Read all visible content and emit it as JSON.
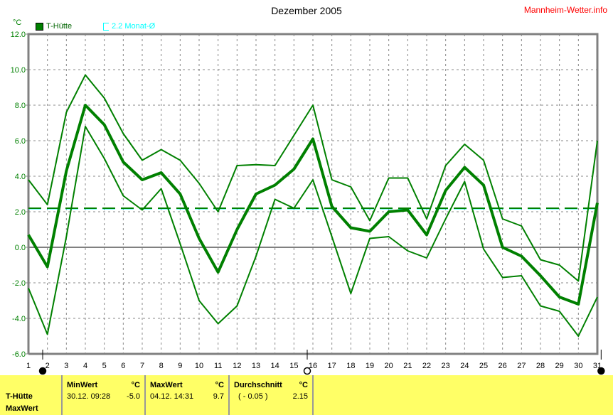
{
  "header": {
    "title": "Dezember 2005",
    "brand": "Mannheim-Wetter.info"
  },
  "legend": {
    "unit": "°C",
    "series": "T-Hütte",
    "avg_label": "2.2 Monat-Ø"
  },
  "colors": {
    "line": "#008000",
    "avg": "#00ffff",
    "brand": "#ff0000",
    "table_bg": "#ffff66"
  },
  "chart_data": {
    "type": "line",
    "title": "Dezember 2005",
    "ylabel": "°C",
    "ylim": [
      -6,
      12
    ],
    "yticks": [
      "12.0",
      "10.0",
      "8.0",
      "6.0",
      "4.0",
      "2.0",
      "0.0",
      "-2.0",
      "-4.0",
      "-6.0"
    ],
    "x": [
      1,
      2,
      3,
      4,
      5,
      6,
      7,
      8,
      9,
      10,
      11,
      12,
      13,
      14,
      15,
      16,
      17,
      18,
      19,
      20,
      21,
      22,
      23,
      24,
      25,
      26,
      27,
      28,
      29,
      30,
      31
    ],
    "grid": true,
    "series": [
      {
        "role": "max",
        "values": [
          3.8,
          2.4,
          7.6,
          9.7,
          8.4,
          6.4,
          4.9,
          5.5,
          4.9,
          3.6,
          2.0,
          4.6,
          4.65,
          4.6,
          6.3,
          8.0,
          3.8,
          3.4,
          1.5,
          3.9,
          3.9,
          1.6,
          4.6,
          5.8,
          4.9,
          1.6,
          1.2,
          -0.7,
          -1.0,
          -1.9,
          6.0
        ]
      },
      {
        "role": "mean",
        "name": "T-Hütte",
        "values": [
          0.7,
          -1.1,
          4.3,
          8.0,
          6.9,
          4.8,
          3.8,
          4.2,
          3.0,
          0.5,
          -1.4,
          1.0,
          3.0,
          3.5,
          4.4,
          6.1,
          2.3,
          1.1,
          0.9,
          2.0,
          2.1,
          0.7,
          3.2,
          4.5,
          3.5,
          0.0,
          -0.5,
          -1.6,
          -2.8,
          -3.2,
          2.5
        ]
      },
      {
        "role": "min",
        "values": [
          -2.3,
          -4.9,
          0.6,
          6.8,
          5.0,
          2.9,
          2.1,
          3.3,
          0.2,
          -3.0,
          -4.3,
          -3.3,
          -0.5,
          2.7,
          2.2,
          3.8,
          0.6,
          -2.6,
          0.5,
          0.6,
          -0.2,
          -0.6,
          1.6,
          3.7,
          -0.1,
          -1.7,
          -1.6,
          -3.3,
          -3.6,
          -5.0,
          -2.8
        ]
      }
    ],
    "monthly_avg": 2.2,
    "moon_phases": [
      {
        "day": 1.75,
        "phase": "new"
      },
      {
        "day": 15.7,
        "phase": "full"
      },
      {
        "day": 31.2,
        "phase": "new"
      }
    ]
  },
  "stats": {
    "row_label_1": "T-Hütte",
    "row_label_2": "MaxWert",
    "min": {
      "label": "MinWert",
      "unit": "°C",
      "time": "30.12.  09:28",
      "value": "-5.0"
    },
    "max": {
      "label": "MaxWert",
      "unit": "°C",
      "time": "04.12.  14:31",
      "value": "9.7"
    },
    "avg": {
      "label": "Durchschnitt",
      "unit": "°C",
      "note": "( - 0.05 )",
      "value": "2.15"
    }
  }
}
